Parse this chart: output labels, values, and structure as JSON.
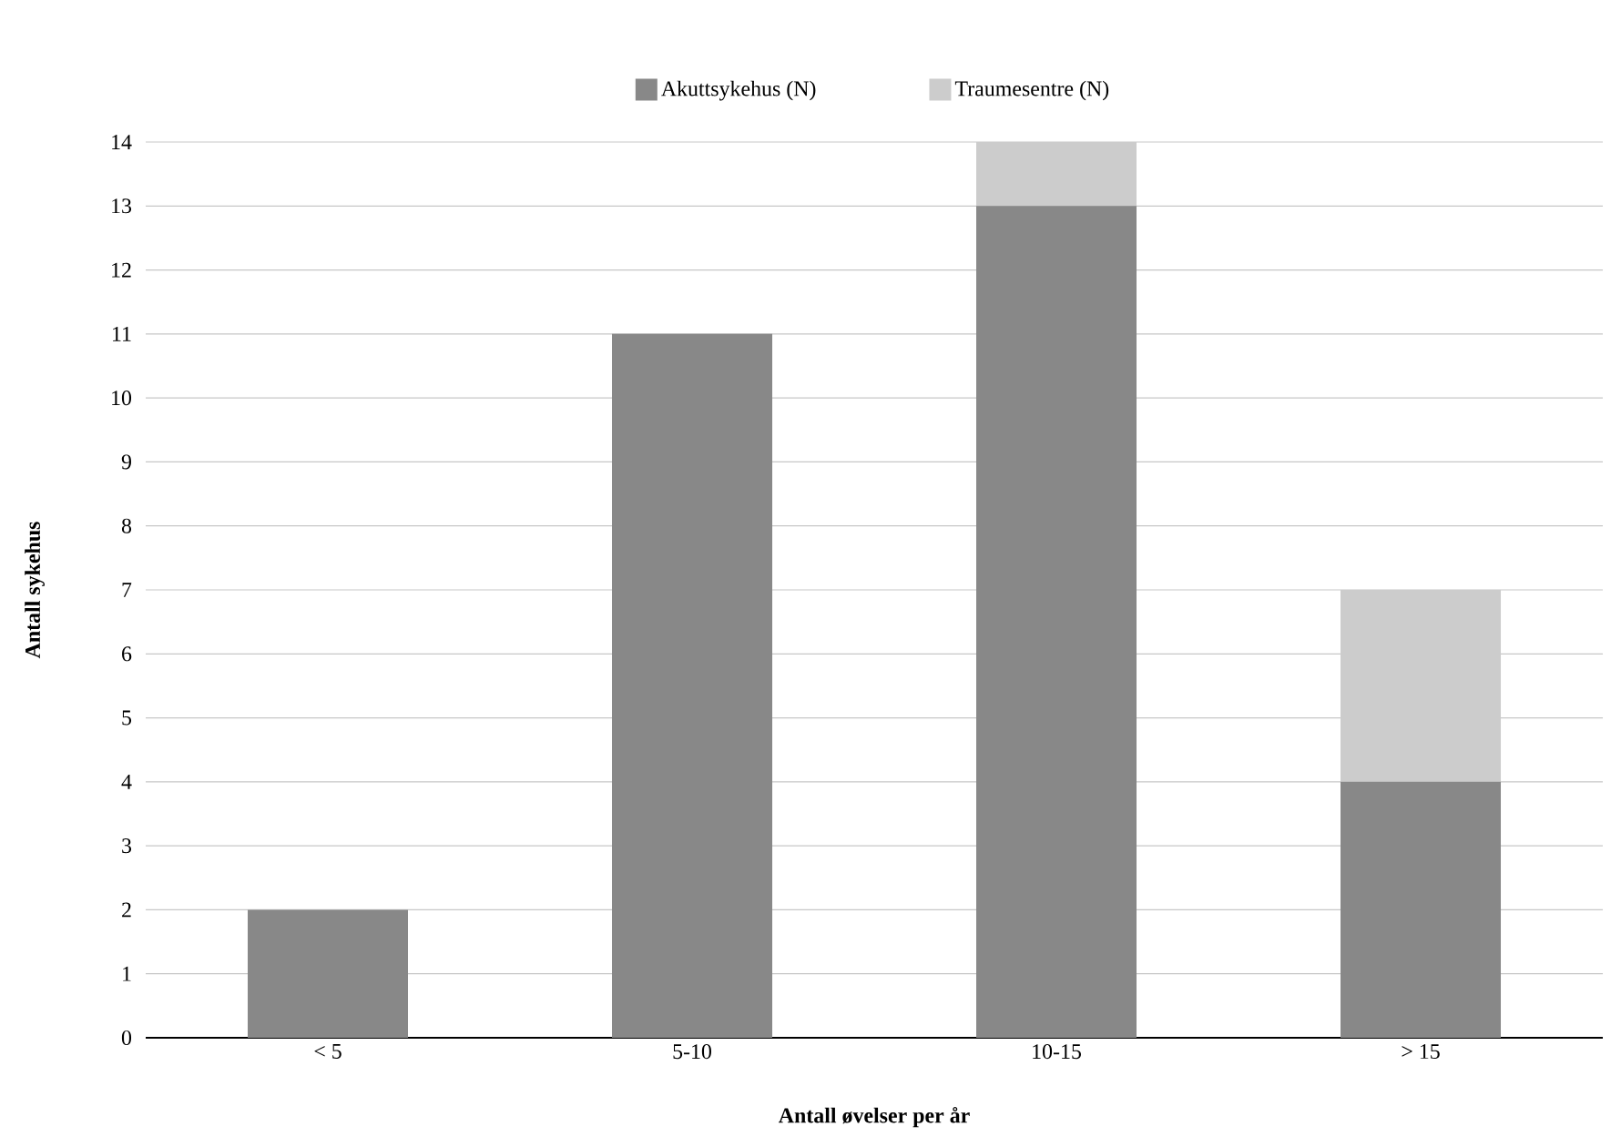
{
  "chart_data": {
    "type": "bar",
    "stacked": true,
    "xlabel": "Antall øvelser per år",
    "ylabel": "Antall sykehus",
    "categories": [
      "< 5",
      "5-10",
      "10-15",
      "> 15"
    ],
    "series": [
      {
        "name": "Akuttsykehus (N)",
        "color": "#888888",
        "values": [
          2,
          11,
          13,
          4
        ]
      },
      {
        "name": "Traumesentre (N)",
        "color": "#cccccc",
        "values": [
          0,
          0,
          1,
          3
        ]
      }
    ],
    "ylim": [
      0,
      14
    ],
    "yticks": [
      0,
      1,
      2,
      3,
      4,
      5,
      6,
      7,
      8,
      9,
      10,
      11,
      12,
      13,
      14
    ],
    "grid": "y",
    "legend": "top"
  }
}
